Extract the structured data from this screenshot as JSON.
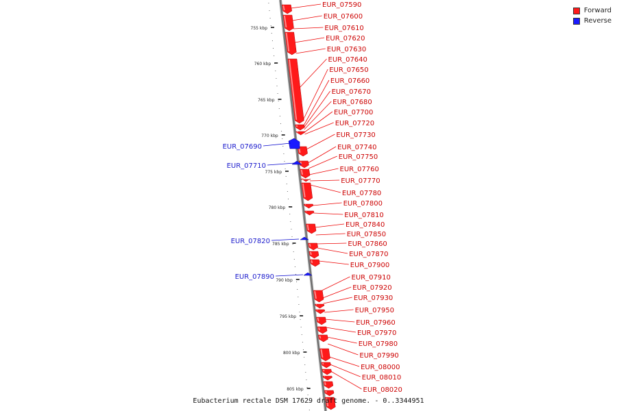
{
  "legend": {
    "forward_label": "Forward",
    "reverse_label": "Reverse",
    "forward_color": "#ff1a1a",
    "reverse_color": "#1a1aff"
  },
  "caption": "Eubacterium rectale DSM 17629 draft genome. - 0..3344951",
  "ruler_ticks": [
    "755 kbp",
    "760 kbp",
    "765 kbp",
    "770 kbp",
    "775 kbp",
    "780 kbp",
    "785 kbp",
    "790 kbp",
    "795 kbp",
    "800 kbp",
    "805 kbp"
  ],
  "genes_forward": [
    "EUR_07590",
    "EUR_07600",
    "EUR_07610",
    "EUR_07620",
    "EUR_07630",
    "EUR_07640",
    "EUR_07650",
    "EUR_07660",
    "EUR_07670",
    "EUR_07680",
    "EUR_07700",
    "EUR_07720",
    "EUR_07730",
    "EUR_07740",
    "EUR_07750",
    "EUR_07760",
    "EUR_07770",
    "EUR_07780",
    "EUR_07800",
    "EUR_07810",
    "EUR_07840",
    "EUR_07850",
    "EUR_07860",
    "EUR_07870",
    "EUR_07900",
    "EUR_07910",
    "EUR_07920",
    "EUR_07930",
    "EUR_07950",
    "EUR_07960",
    "EUR_07970",
    "EUR_07980",
    "EUR_07990",
    "EUR_08000",
    "EUR_08010",
    "EUR_08020"
  ],
  "genes_reverse": [
    "EUR_07690",
    "EUR_07710",
    "EUR_07820",
    "EUR_07890"
  ]
}
